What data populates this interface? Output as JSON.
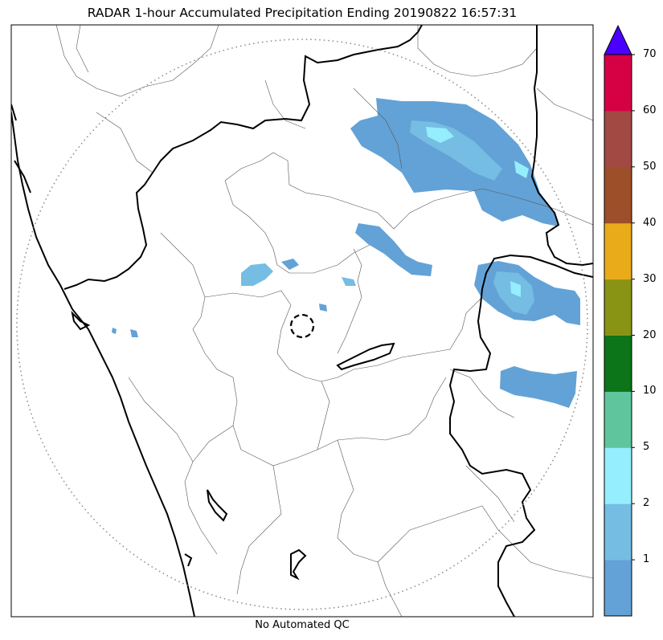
{
  "title": "RADAR 1-hour Accumulated Precipitation Ending 20190822 16:57:31",
  "footer": "No Automated QC",
  "colorbar": {
    "extend_color": "#4b00ff",
    "segments": [
      {
        "color": "#63a2d6",
        "label": "1"
      },
      {
        "color": "#75bde3",
        "label": "2"
      },
      {
        "color": "#95eefe",
        "label": "5"
      },
      {
        "color": "#5fc59d",
        "label": "10"
      },
      {
        "color": "#0c7419",
        "label": "20"
      },
      {
        "color": "#8a9414",
        "label": "30"
      },
      {
        "color": "#e9ab1a",
        "label": "40"
      },
      {
        "color": "#9c4f28",
        "label": "50"
      },
      {
        "color": "#a34944",
        "label": "60"
      },
      {
        "color": "#d60144",
        "label": "70"
      }
    ]
  },
  "map": {
    "range_ring": "dotted",
    "radar_site_marker": "dashed-circle"
  }
}
